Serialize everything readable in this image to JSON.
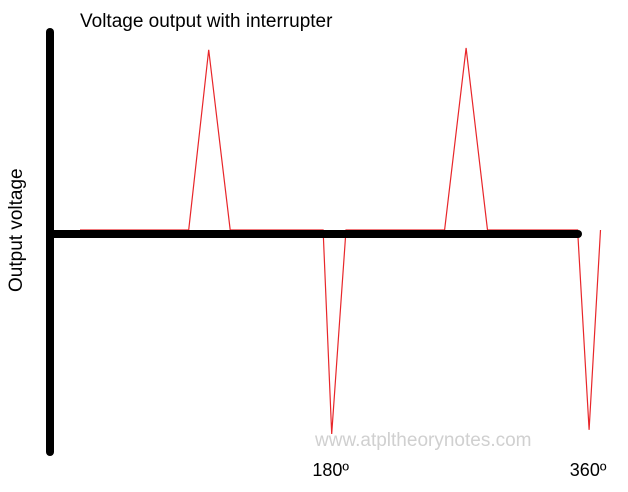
{
  "chart_data": {
    "type": "line",
    "title": "Voltage output with interrupter",
    "xlabel": "",
    "ylabel": "Output voltage",
    "x_ticks": [
      {
        "x": 180,
        "label": "180º"
      },
      {
        "x": 360,
        "label": "360º"
      }
    ],
    "xlim": [
      0,
      440
    ],
    "ylim": [
      -1,
      1
    ],
    "grid": false,
    "legend": "none",
    "series": [
      {
        "color": "#e8262a",
        "x": [
          0,
          76,
          90,
          105,
          170,
          176,
          186,
          255,
          270,
          285,
          348,
          356,
          364
        ],
        "y": [
          0,
          0,
          0.99,
          0,
          0,
          -1,
          0,
          0,
          1,
          0,
          0,
          -0.98,
          0
        ]
      }
    ],
    "watermark": "www.atpltheorynotes.com"
  }
}
